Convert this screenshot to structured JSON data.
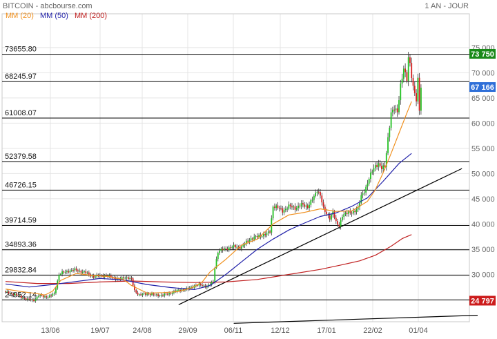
{
  "header": {
    "source": "BITCOIN - abcbourse.com",
    "ma20_label": "MM (20)",
    "ma50_label": "MM (50)",
    "ma200_label": "MM (200)",
    "period": "1 AN - JOUR"
  },
  "colors": {
    "background": "#ffffff",
    "grid": "#e4e4e4",
    "frame": "#c8c8c8",
    "candle_up": "#22c022",
    "candle_down": "#d62020",
    "wick": "#333333",
    "ma20": "#f0901e",
    "ma50": "#1f1fa8",
    "ma200": "#c02020",
    "level_line": "#000000",
    "trend_line": "#000000",
    "badge_high": "#1a8a1a",
    "badge_last": "#2f6fd8",
    "badge_low": "#cc1c1c",
    "header_text": "#666666"
  },
  "chart_data": {
    "type": "candlestick",
    "title": "BITCOIN",
    "period": "1 AN - JOUR",
    "x_ticks": [
      "13/06",
      "19/07",
      "24/08",
      "29/09",
      "06/11",
      "12/12",
      "17/01",
      "22/02",
      "01/04"
    ],
    "y_ticks": [
      25000,
      30000,
      35000,
      40000,
      45000,
      50000,
      55000,
      60000,
      65000,
      70000,
      75000
    ],
    "y_tick_labels": [
      "25 000",
      "30 000",
      "35 000",
      "40 000",
      "45 000",
      "50 000",
      "55 000",
      "60 000",
      "65 000",
      "70 000",
      "75 000"
    ],
    "ylim": [
      20000,
      77000
    ],
    "levels": [
      "73655.80",
      "68245.97",
      "61008.07",
      "52379.58",
      "46726.15",
      "39714.59",
      "34893.36",
      "29832.84",
      "24952.14"
    ],
    "price_badges": [
      {
        "label": "73 750",
        "value": 73750,
        "kind": "high"
      },
      {
        "label": "67 166",
        "value": 67166,
        "kind": "last"
      },
      {
        "label": "24 797",
        "value": 24797,
        "kind": "low"
      }
    ],
    "series": [
      {
        "name": "MM (20)",
        "values": [
          [
            0,
            27100
          ],
          [
            10,
            26600
          ],
          [
            20,
            26200
          ],
          [
            25,
            25900
          ],
          [
            30,
            26700
          ],
          [
            35,
            28800
          ],
          [
            45,
            30200
          ],
          [
            55,
            29800
          ],
          [
            65,
            29600
          ],
          [
            75,
            29000
          ],
          [
            80,
            27800
          ],
          [
            90,
            26300
          ],
          [
            100,
            26400
          ],
          [
            110,
            26600
          ],
          [
            118,
            27300
          ],
          [
            125,
            28500
          ],
          [
            130,
            30500
          ],
          [
            140,
            33000
          ],
          [
            150,
            35800
          ],
          [
            160,
            37000
          ],
          [
            170,
            40000
          ],
          [
            180,
            41800
          ],
          [
            190,
            42300
          ],
          [
            200,
            43000
          ],
          [
            210,
            42500
          ],
          [
            220,
            42600
          ],
          [
            230,
            44500
          ],
          [
            235,
            46800
          ],
          [
            240,
            50200
          ],
          [
            245,
            54000
          ],
          [
            250,
            58000
          ],
          [
            255,
            62000
          ],
          [
            258,
            64300
          ]
        ]
      },
      {
        "name": "MM (50)",
        "values": [
          [
            0,
            28100
          ],
          [
            15,
            27500
          ],
          [
            30,
            28000
          ],
          [
            45,
            28600
          ],
          [
            60,
            29200
          ],
          [
            75,
            28900
          ],
          [
            90,
            28000
          ],
          [
            105,
            27400
          ],
          [
            120,
            27000
          ],
          [
            130,
            27800
          ],
          [
            140,
            30000
          ],
          [
            150,
            32500
          ],
          [
            160,
            35000
          ],
          [
            170,
            37000
          ],
          [
            180,
            38800
          ],
          [
            190,
            40200
          ],
          [
            200,
            41500
          ],
          [
            210,
            42200
          ],
          [
            220,
            43500
          ],
          [
            230,
            45200
          ],
          [
            240,
            48500
          ],
          [
            250,
            52000
          ],
          [
            258,
            54000
          ]
        ]
      },
      {
        "name": "MM (200)",
        "values": [
          [
            0,
            28600
          ],
          [
            20,
            28200
          ],
          [
            40,
            28200
          ],
          [
            60,
            28500
          ],
          [
            80,
            28700
          ],
          [
            100,
            28500
          ],
          [
            120,
            28400
          ],
          [
            140,
            28500
          ],
          [
            160,
            29000
          ],
          [
            180,
            30000
          ],
          [
            200,
            31000
          ],
          [
            215,
            32000
          ],
          [
            225,
            32700
          ],
          [
            235,
            33800
          ],
          [
            245,
            35600
          ],
          [
            252,
            37100
          ],
          [
            258,
            37900
          ]
        ]
      }
    ],
    "trend_lines": [
      {
        "x": [
          110,
          290
        ],
        "y": [
          24000,
          51000
        ]
      },
      {
        "x": [
          145,
          300
        ],
        "y": [
          20300,
          21900
        ]
      }
    ]
  }
}
